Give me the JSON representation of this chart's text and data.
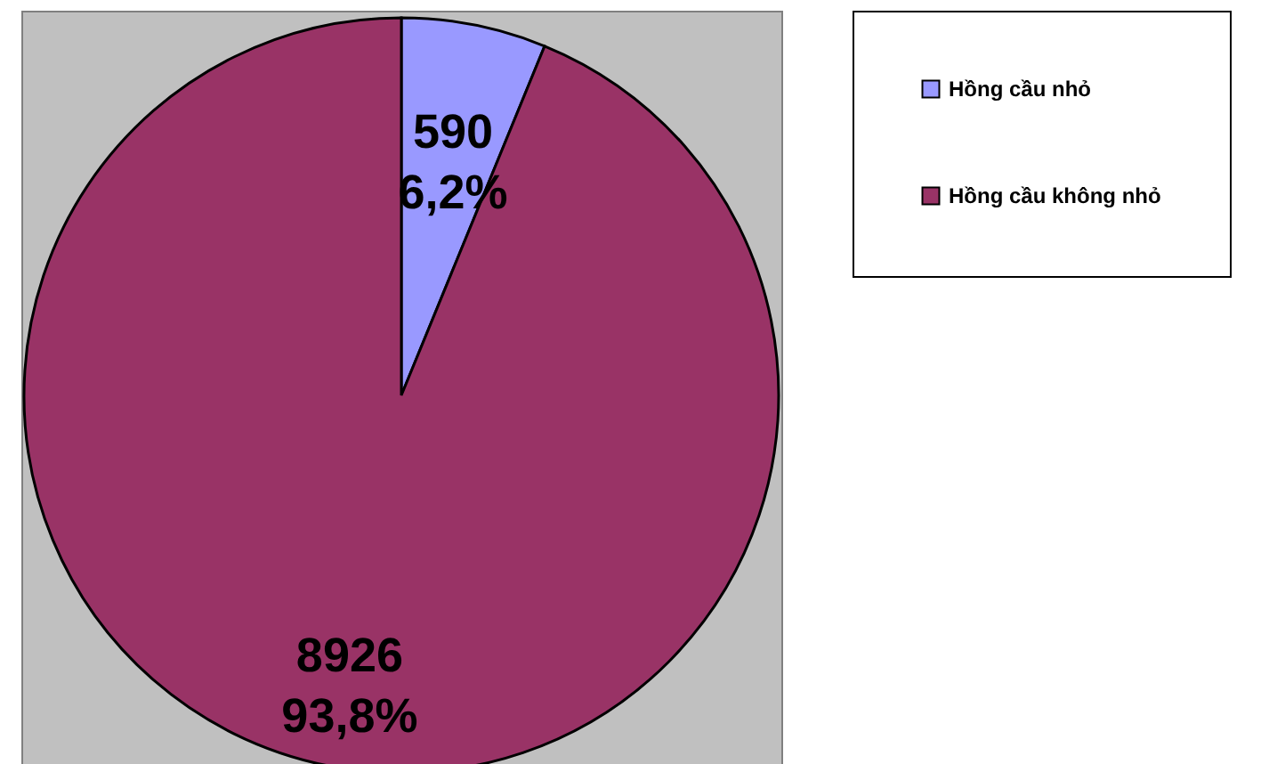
{
  "chart_data": {
    "type": "pie",
    "categories": [
      "Hồng cầu nhỏ",
      "Hồng cầu không nhỏ"
    ],
    "values": [
      590,
      8926
    ],
    "colors": [
      "#9999ff",
      "#993366"
    ],
    "value_labels": [
      "590\n6,2%",
      "8926\n93,8%"
    ],
    "legend": "right"
  }
}
